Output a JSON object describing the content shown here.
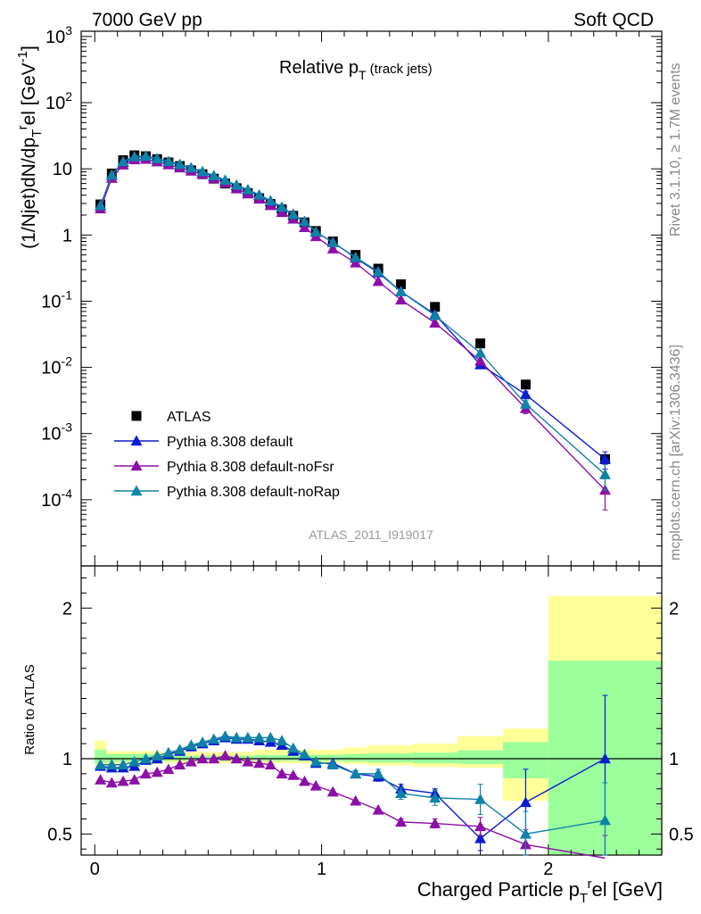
{
  "header": {
    "left": "7000 GeV pp",
    "right": "Soft QCD"
  },
  "side_text": {
    "top": "Rivet 3.1.10, ≥ 1.7M events",
    "bottom": "mcplots.cern.ch [arXiv:1306.3436]"
  },
  "chart_data": [
    {
      "type": "line",
      "title": "Relative p",
      "title_sub": "T",
      "title_note": "(track jets)",
      "ylabel": "(1/Njet)dN/dp",
      "ylabel_sub": "T",
      "ylabel_sup": "r",
      "ylabel_tail": "el [GeV",
      "ylabel_unit_sup": "-1",
      "ylabel_close": "]",
      "yscale": "log",
      "xlim": [
        -0.06,
        2.5
      ],
      "ylim": [
        1e-05,
        1200
      ],
      "y_ticks": [
        {
          "value": 0.0001,
          "label": "10",
          "exp": "-4"
        },
        {
          "value": 0.001,
          "label": "10",
          "exp": "-3"
        },
        {
          "value": 0.01,
          "label": "10",
          "exp": "-2"
        },
        {
          "value": 0.1,
          "label": "10",
          "exp": "-1"
        },
        {
          "value": 1,
          "label": "1",
          "exp": ""
        },
        {
          "value": 10,
          "label": "10",
          "exp": ""
        },
        {
          "value": 100,
          "label": "10",
          "exp": "2"
        },
        {
          "value": 1000,
          "label": "10",
          "exp": "3"
        }
      ],
      "analysis_label": "ATLAS_2011_I919017",
      "legend_position": "bottom-left",
      "x": [
        0.025,
        0.075,
        0.125,
        0.175,
        0.225,
        0.275,
        0.325,
        0.375,
        0.425,
        0.475,
        0.525,
        0.575,
        0.625,
        0.675,
        0.725,
        0.775,
        0.825,
        0.875,
        0.925,
        0.975,
        1.05,
        1.15,
        1.25,
        1.35,
        1.5,
        1.7,
        1.9,
        2.25
      ],
      "series": [
        {
          "name": "ATLAS",
          "color": "#000000",
          "marker": "square",
          "values": [
            2.9,
            8.5,
            13.5,
            16,
            15.5,
            14,
            12.5,
            11,
            9.5,
            8.3,
            7.1,
            6.0,
            5.1,
            4.3,
            3.6,
            2.95,
            2.45,
            1.95,
            1.55,
            1.15,
            0.8,
            0.5,
            0.31,
            0.18,
            0.082,
            0.023,
            0.0055,
            0.00041
          ]
        },
        {
          "name": "Pythia 8.308 default",
          "color": "#0b1bd0",
          "marker": "triangle",
          "values": [
            2.75,
            8.0,
            12.5,
            15.0,
            15.3,
            14.0,
            12.8,
            11.5,
            10.2,
            8.9,
            7.7,
            6.65,
            5.6,
            4.75,
            3.95,
            3.2,
            2.6,
            2.05,
            1.6,
            1.1,
            0.78,
            0.45,
            0.27,
            0.14,
            0.063,
            0.011,
            0.0039,
            0.00041
          ],
          "errors": [
            0,
            0,
            0,
            0,
            0,
            0,
            0,
            0,
            0,
            0,
            0,
            0,
            0,
            0,
            0,
            0,
            0,
            0,
            0,
            0,
            0,
            0,
            0,
            0,
            0,
            0,
            0.0004,
            0.00012
          ]
        },
        {
          "name": "Pythia 8.308 default-noFsr",
          "color": "#8d0fa8",
          "marker": "triangle",
          "values": [
            2.5,
            7.2,
            11.5,
            13.8,
            14.0,
            12.8,
            11.6,
            10.4,
            9.3,
            8.3,
            7.1,
            6.1,
            5.0,
            4.2,
            3.5,
            2.8,
            2.2,
            1.75,
            1.3,
            0.95,
            0.62,
            0.38,
            0.2,
            0.105,
            0.047,
            0.0125,
            0.0024,
            0.00014
          ],
          "errors": [
            0,
            0,
            0,
            0,
            0,
            0,
            0,
            0,
            0,
            0,
            0,
            0,
            0,
            0,
            0,
            0,
            0,
            0,
            0,
            0,
            0,
            0,
            0,
            0,
            0,
            0,
            0.0004,
            7e-05
          ]
        },
        {
          "name": "Pythia 8.308 default-noRap",
          "color": "#0f82a8",
          "marker": "triangle",
          "values": [
            2.8,
            8.1,
            12.9,
            15.3,
            15.6,
            14.3,
            13.0,
            11.7,
            10.4,
            9.1,
            7.9,
            6.75,
            5.7,
            4.85,
            4.05,
            3.3,
            2.65,
            2.05,
            1.6,
            1.12,
            0.77,
            0.46,
            0.28,
            0.14,
            0.061,
            0.0165,
            0.0028,
            0.00024
          ],
          "errors": [
            0,
            0,
            0,
            0,
            0,
            0,
            0,
            0,
            0,
            0,
            0,
            0,
            0,
            0,
            0,
            0,
            0,
            0,
            0,
            0,
            0,
            0,
            0,
            0,
            0,
            0,
            0.0004,
            0.0001
          ]
        }
      ]
    },
    {
      "type": "line",
      "ylabel": "Ratio to ATLAS",
      "xlabel": "Charged Particle p",
      "xlabel_sub": "T",
      "xlabel_sup": "r",
      "xlabel_tail": "el [GeV]",
      "xlim": [
        -0.06,
        2.5
      ],
      "ylim": [
        0.36,
        2.28
      ],
      "x_ticks": [
        {
          "value": 0,
          "label": "0"
        },
        {
          "value": 1,
          "label": "1"
        },
        {
          "value": 2,
          "label": "2"
        }
      ],
      "y_ticks": [
        {
          "value": 0.5,
          "label": "0.5"
        },
        {
          "value": 1,
          "label": "1"
        },
        {
          "value": 2,
          "label": "2"
        }
      ],
      "reference_line": 1,
      "bands": {
        "inner_color": "#9bff9b",
        "outer_color": "#ffff99",
        "bins": [
          {
            "x0": 0.0,
            "x1": 0.05,
            "inner": [
              0.97,
              1.06
            ],
            "outer": [
              0.95,
              1.12
            ]
          },
          {
            "x0": 0.05,
            "x1": 0.3,
            "inner": [
              0.98,
              1.03
            ],
            "outer": [
              0.965,
              1.05
            ]
          },
          {
            "x0": 0.3,
            "x1": 0.7,
            "inner": [
              0.985,
              1.02
            ],
            "outer": [
              0.97,
              1.045
            ]
          },
          {
            "x0": 0.7,
            "x1": 1.1,
            "inner": [
              0.985,
              1.025
            ],
            "outer": [
              0.97,
              1.06
            ]
          },
          {
            "x0": 1.1,
            "x1": 1.2,
            "inner": [
              0.98,
              1.03
            ],
            "outer": [
              0.965,
              1.075
            ]
          },
          {
            "x0": 1.2,
            "x1": 1.4,
            "inner": [
              0.975,
              1.035
            ],
            "outer": [
              0.955,
              1.09
            ]
          },
          {
            "x0": 1.4,
            "x1": 1.6,
            "inner": [
              0.97,
              1.04
            ],
            "outer": [
              0.945,
              1.1
            ]
          },
          {
            "x0": 1.6,
            "x1": 1.8,
            "inner": [
              0.965,
              1.055
            ],
            "outer": [
              0.94,
              1.15
            ]
          },
          {
            "x0": 1.8,
            "x1": 2.0,
            "inner": [
              0.87,
              1.11
            ],
            "outer": [
              0.72,
              1.2
            ]
          },
          {
            "x0": 2.0,
            "x1": 2.5,
            "inner": [
              0.3,
              1.65
            ],
            "outer": [
              0.3,
              2.08
            ]
          }
        ]
      },
      "series": [
        {
          "name": "Pythia 8.308 default",
          "color": "#0b1bd0",
          "values": [
            0.95,
            0.94,
            0.94,
            0.95,
            0.99,
            1.0,
            1.03,
            1.05,
            1.08,
            1.1,
            1.12,
            1.14,
            1.13,
            1.13,
            1.12,
            1.11,
            1.09,
            1.05,
            1.02,
            0.97,
            0.97,
            0.9,
            0.88,
            0.8,
            0.77,
            0.47,
            0.71,
            1.0
          ],
          "errors": [
            0,
            0,
            0,
            0,
            0,
            0,
            0,
            0,
            0,
            0,
            0,
            0,
            0,
            0,
            0,
            0,
            0,
            0,
            0,
            0,
            0,
            0.02,
            0.03,
            0.03,
            0.03,
            0.08,
            0.22,
            0.42
          ]
        },
        {
          "name": "Pythia 8.308 default-noFsr",
          "color": "#8d0fa8",
          "values": [
            0.86,
            0.84,
            0.85,
            0.86,
            0.9,
            0.91,
            0.93,
            0.96,
            0.98,
            1.0,
            1.0,
            1.02,
            1.0,
            0.98,
            0.97,
            0.96,
            0.9,
            0.89,
            0.85,
            0.82,
            0.78,
            0.72,
            0.66,
            0.58,
            0.57,
            0.55,
            0.43,
            0.34
          ],
          "errors": [
            0,
            0,
            0,
            0,
            0,
            0,
            0,
            0,
            0,
            0,
            0,
            0,
            0,
            0,
            0,
            0,
            0,
            0,
            0,
            0,
            0,
            0,
            0,
            0.02,
            0.03,
            0.06,
            0.1,
            0.15
          ]
        },
        {
          "name": "Pythia 8.308 default-noRap",
          "color": "#0f82a8",
          "values": [
            0.96,
            0.96,
            0.96,
            0.98,
            1.0,
            1.02,
            1.04,
            1.06,
            1.09,
            1.11,
            1.13,
            1.15,
            1.14,
            1.14,
            1.14,
            1.14,
            1.12,
            1.07,
            1.03,
            0.98,
            0.96,
            0.9,
            0.9,
            0.77,
            0.74,
            0.73,
            0.5,
            0.59
          ],
          "errors": [
            0,
            0,
            0,
            0,
            0,
            0,
            0,
            0,
            0,
            0,
            0,
            0,
            0,
            0,
            0,
            0,
            0,
            0,
            0,
            0,
            0,
            0.02,
            0.03,
            0.04,
            0.05,
            0.1,
            0.15,
            0.25
          ]
        }
      ]
    }
  ]
}
